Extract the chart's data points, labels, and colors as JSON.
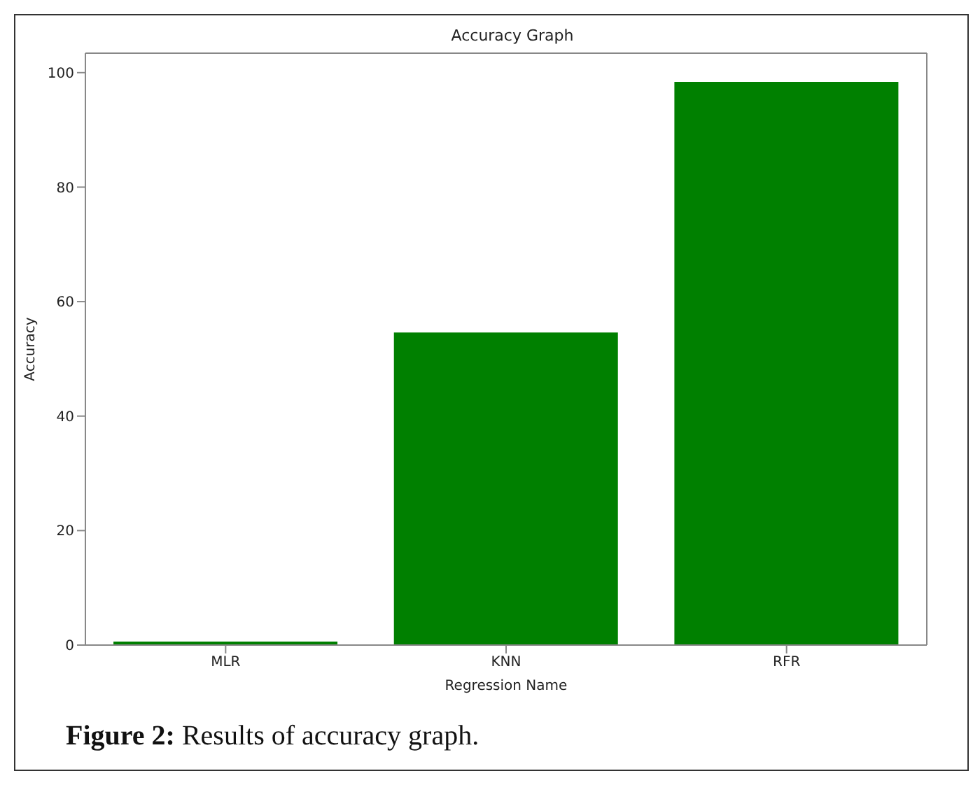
{
  "chart_data": {
    "type": "bar",
    "title": "Accuracy Graph",
    "xlabel": "Regression Name",
    "ylabel": "Accuracy",
    "categories": [
      "MLR",
      "KNN",
      "RFR"
    ],
    "values": [
      0.6,
      54.6,
      98.4
    ],
    "color": "#008000",
    "ylim": [
      0,
      103.4
    ],
    "yticks": [
      0,
      20,
      40,
      60,
      80,
      100
    ],
    "annotations": [
      "Figure 2: Results of accuracy graph."
    ]
  }
}
